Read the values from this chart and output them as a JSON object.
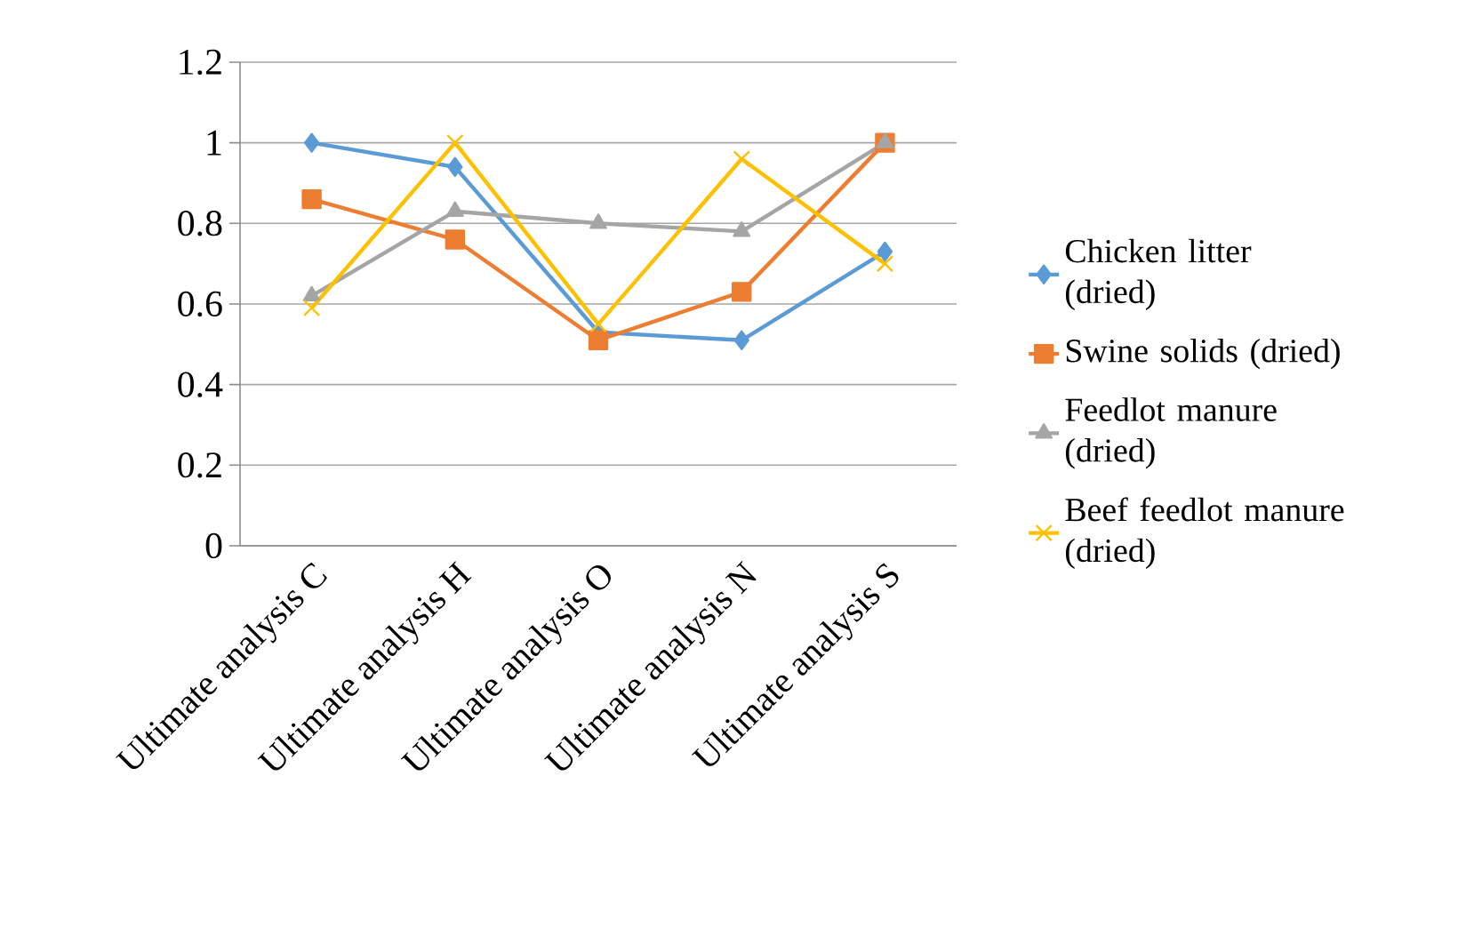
{
  "chart_data": {
    "type": "line",
    "categories": [
      "Ultimate analysis C",
      "Ultimate analysis H",
      "Ultimate analysis O",
      "Ultimate analysis N",
      "Ultimate analysis S"
    ],
    "series": [
      {
        "name": "Chicken litter (dried)",
        "color": "#5b9bd5",
        "marker": "diamond",
        "values": [
          1.0,
          0.94,
          0.53,
          0.51,
          0.73
        ]
      },
      {
        "name": "Swine solids (dried)",
        "color": "#ed7d31",
        "marker": "square",
        "values": [
          0.86,
          0.76,
          0.51,
          0.63,
          1.0
        ]
      },
      {
        "name": "Feedlot manure (dried)",
        "color": "#a5a5a5",
        "marker": "triangle",
        "values": [
          0.62,
          0.83,
          0.8,
          0.78,
          1.0
        ]
      },
      {
        "name": "Beef feedlot manure (dried)",
        "color": "#ffc000",
        "marker": "cross",
        "values": [
          0.59,
          1.0,
          0.55,
          0.96,
          0.7
        ]
      }
    ],
    "ylim": [
      0,
      1.2
    ],
    "yticks": [
      0,
      0.2,
      0.4,
      0.6,
      0.8,
      1,
      1.2
    ],
    "grid": "y",
    "legend": "right",
    "line_style": "solid"
  }
}
